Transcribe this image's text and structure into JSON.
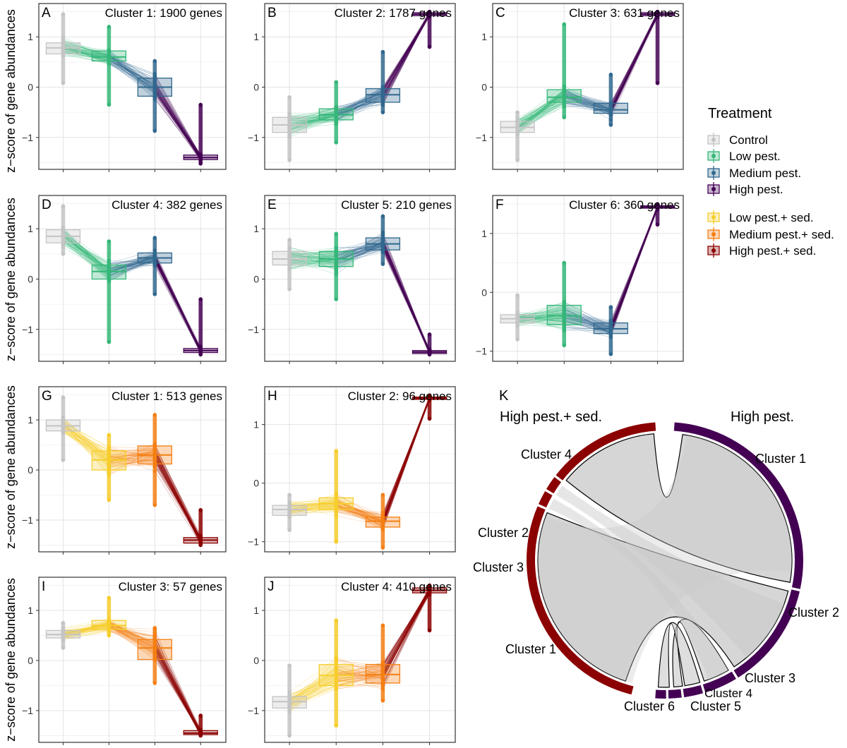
{
  "ylabel": "z−score of gene abundances",
  "legend": {
    "title": "Treatment",
    "items": [
      {
        "label": "Control",
        "color": "#c4c4c4"
      },
      {
        "label": "Low pest.",
        "color": "#35b779"
      },
      {
        "label": "Medium pest.",
        "color": "#31688e"
      },
      {
        "label": "High pest.",
        "color": "#440154"
      },
      {
        "label": "Low pest.+ sed.",
        "color": "#f6cd2d"
      },
      {
        "label": "Medium pest.+ sed.",
        "color": "#f47f14"
      },
      {
        "label": "High pest.+ sed.",
        "color": "#8b0000"
      }
    ]
  },
  "chart_data": [
    {
      "type": "line",
      "panel": "A",
      "title": "Cluster 1: 1900 genes",
      "yticks": [
        "1",
        "0",
        "−1"
      ],
      "ylim": [
        -1.55,
        1.55
      ],
      "colors": [
        "#c4c4c4",
        "#35b779",
        "#31688e",
        "#440154"
      ],
      "medians": [
        0.78,
        0.6,
        0.0,
        -1.4
      ],
      "q1": [
        0.66,
        0.52,
        -0.18,
        -1.44
      ],
      "q3": [
        0.88,
        0.72,
        0.18,
        -1.35
      ],
      "min": [
        0.08,
        -0.35,
        -0.87,
        -1.52
      ],
      "max": [
        1.45,
        1.2,
        0.52,
        -0.35
      ]
    },
    {
      "type": "line",
      "panel": "B",
      "title": "Cluster 2: 1787 genes",
      "yticks": [
        "1",
        "0",
        "−1"
      ],
      "ylim": [
        -1.55,
        1.55
      ],
      "colors": [
        "#c4c4c4",
        "#35b779",
        "#31688e",
        "#440154"
      ],
      "medians": [
        -0.75,
        -0.55,
        -0.15,
        1.45
      ],
      "q1": [
        -0.9,
        -0.65,
        -0.3,
        1.42
      ],
      "q3": [
        -0.6,
        -0.43,
        -0.03,
        1.48
      ],
      "min": [
        -1.45,
        -1.1,
        -0.5,
        0.8
      ],
      "max": [
        -0.2,
        0.1,
        0.7,
        1.5
      ]
    },
    {
      "type": "line",
      "panel": "C",
      "title": "Cluster 3: 631 genes",
      "yticks": [
        "1",
        "0",
        "−1"
      ],
      "ylim": [
        -1.55,
        1.55
      ],
      "colors": [
        "#c4c4c4",
        "#35b779",
        "#31688e",
        "#440154"
      ],
      "medians": [
        -0.8,
        -0.2,
        -0.45,
        1.45
      ],
      "q1": [
        -0.9,
        -0.3,
        -0.52,
        1.42
      ],
      "q3": [
        -0.68,
        -0.05,
        -0.32,
        1.48
      ],
      "min": [
        -1.45,
        -0.6,
        -0.75,
        0.08
      ],
      "max": [
        -0.5,
        1.25,
        0.25,
        1.5
      ]
    },
    {
      "type": "line",
      "panel": "D",
      "title": "Cluster 4: 382 genes",
      "yticks": [
        "1",
        "0",
        "−1"
      ],
      "ylim": [
        -1.55,
        1.55
      ],
      "colors": [
        "#c4c4c4",
        "#35b779",
        "#31688e",
        "#440154"
      ],
      "medians": [
        0.85,
        0.15,
        0.42,
        -1.42
      ],
      "q1": [
        0.72,
        0.0,
        0.32,
        -1.46
      ],
      "q3": [
        0.98,
        0.28,
        0.52,
        -1.38
      ],
      "min": [
        0.5,
        -1.25,
        -0.3,
        -1.5
      ],
      "max": [
        1.45,
        0.75,
        0.82,
        -0.4
      ]
    },
    {
      "type": "line",
      "panel": "E",
      "title": "Cluster 5: 210 genes",
      "yticks": [
        "1",
        "0",
        "−1"
      ],
      "ylim": [
        -1.55,
        1.55
      ],
      "colors": [
        "#c4c4c4",
        "#35b779",
        "#31688e",
        "#440154"
      ],
      "medians": [
        0.4,
        0.4,
        0.7,
        -1.45
      ],
      "q1": [
        0.28,
        0.25,
        0.58,
        -1.48
      ],
      "q3": [
        0.55,
        0.55,
        0.82,
        -1.42
      ],
      "min": [
        -0.2,
        -0.4,
        0.3,
        -1.5
      ],
      "max": [
        0.78,
        0.9,
        1.25,
        -1.1
      ]
    },
    {
      "type": "line",
      "panel": "F",
      "title": "Cluster 6: 360 genes",
      "yticks": [
        "1",
        "0",
        "−1"
      ],
      "ylim": [
        -1.1,
        1.55
      ],
      "colors": [
        "#c4c4c4",
        "#35b779",
        "#31688e",
        "#440154"
      ],
      "medians": [
        -0.45,
        -0.4,
        -0.62,
        1.45
      ],
      "q1": [
        -0.52,
        -0.55,
        -0.7,
        1.43
      ],
      "q3": [
        -0.38,
        -0.22,
        -0.52,
        1.47
      ],
      "min": [
        -0.8,
        -0.9,
        -1.05,
        1.15
      ],
      "max": [
        -0.05,
        0.5,
        -0.25,
        1.5
      ]
    },
    {
      "type": "line",
      "panel": "G",
      "title": "Cluster 1: 513 genes",
      "yticks": [
        "1",
        "0",
        "−1"
      ],
      "ylim": [
        -1.55,
        1.55
      ],
      "colors": [
        "#c4c4c4",
        "#f6cd2d",
        "#f47f14",
        "#8b0000"
      ],
      "medians": [
        0.88,
        0.2,
        0.3,
        -1.4
      ],
      "q1": [
        0.78,
        0.0,
        0.12,
        -1.46
      ],
      "q3": [
        1.0,
        0.38,
        0.48,
        -1.35
      ],
      "min": [
        0.2,
        -0.6,
        -0.7,
        -1.5
      ],
      "max": [
        1.45,
        0.7,
        1.1,
        -0.8
      ]
    },
    {
      "type": "line",
      "panel": "H",
      "title": "Cluster 2: 96 genes",
      "yticks": [
        "1",
        "0",
        "−1"
      ],
      "ylim": [
        -1.1,
        1.55
      ],
      "colors": [
        "#c4c4c4",
        "#f6cd2d",
        "#f47f14",
        "#8b0000"
      ],
      "medians": [
        -0.45,
        -0.35,
        -0.65,
        1.45
      ],
      "q1": [
        -0.55,
        -0.45,
        -0.75,
        1.43
      ],
      "q3": [
        -0.38,
        -0.25,
        -0.58,
        1.47
      ],
      "min": [
        -0.8,
        -1.0,
        -1.1,
        1.1
      ],
      "max": [
        -0.2,
        0.55,
        -0.2,
        1.5
      ]
    },
    {
      "type": "line",
      "panel": "I",
      "title": "Cluster 3: 57 genes",
      "yticks": [
        "1",
        "0",
        "−1"
      ],
      "ylim": [
        -1.55,
        1.55
      ],
      "colors": [
        "#c4c4c4",
        "#f6cd2d",
        "#f47f14",
        "#8b0000"
      ],
      "medians": [
        0.52,
        0.7,
        0.25,
        -1.45
      ],
      "q1": [
        0.45,
        0.62,
        0.02,
        -1.48
      ],
      "q3": [
        0.6,
        0.8,
        0.42,
        -1.4
      ],
      "min": [
        0.25,
        0.5,
        -0.45,
        -1.5
      ],
      "max": [
        0.75,
        1.25,
        0.65,
        -1.1
      ]
    },
    {
      "type": "line",
      "panel": "J",
      "title": "Cluster 4: 410 genes",
      "yticks": [
        "1",
        "0",
        "−1"
      ],
      "ylim": [
        -1.55,
        1.55
      ],
      "colors": [
        "#c4c4c4",
        "#f6cd2d",
        "#f47f14",
        "#8b0000"
      ],
      "medians": [
        -0.82,
        -0.3,
        -0.28,
        1.4
      ],
      "q1": [
        -0.95,
        -0.5,
        -0.45,
        1.35
      ],
      "q3": [
        -0.72,
        -0.08,
        -0.08,
        1.45
      ],
      "min": [
        -1.5,
        -1.3,
        -0.8,
        0.6
      ],
      "max": [
        -0.1,
        0.8,
        0.7,
        1.5
      ]
    },
    {
      "type": "chord",
      "panel": "K",
      "left_label": "High pest.+ sed.",
      "right_label": "High pest.",
      "left_color": "#8b0000",
      "right_color": "#440154",
      "chord_color": "#c8c8c8",
      "left_segments": [
        {
          "label": "Cluster 4",
          "value": 410
        },
        {
          "label": "Cluster 2",
          "value": 96
        },
        {
          "label": "Cluster 3",
          "value": 57
        },
        {
          "label": "Cluster 1",
          "value": 513
        }
      ],
      "right_segments": [
        {
          "label": "Cluster 1",
          "value": 1900
        },
        {
          "label": "Cluster 2",
          "value": 1787
        },
        {
          "label": "Cluster 3",
          "value": 631
        },
        {
          "label": "Cluster 4",
          "value": 382
        },
        {
          "label": "Cluster 5",
          "value": 210
        },
        {
          "label": "Cluster 6",
          "value": 360
        }
      ]
    }
  ]
}
